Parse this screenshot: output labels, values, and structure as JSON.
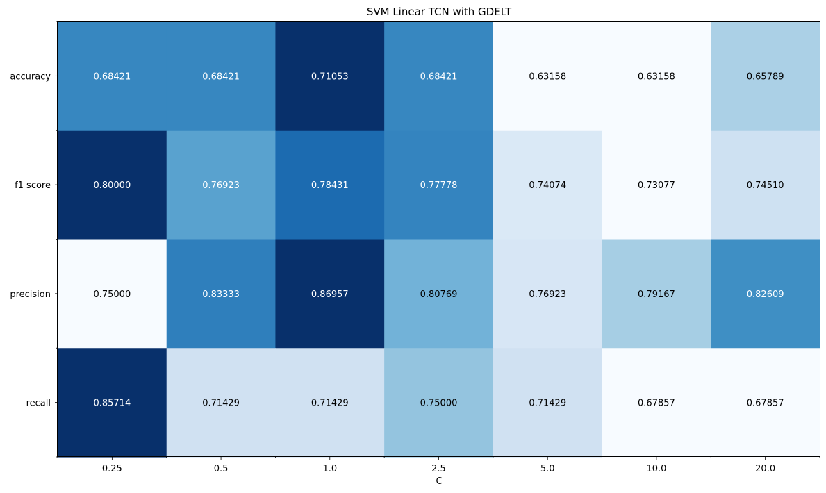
{
  "chart_data": {
    "type": "heatmap",
    "title": "SVM Linear TCN with GDELT",
    "xlabel": "C",
    "ylabel": "",
    "x_categories": [
      "0.25",
      "0.5",
      "1.0",
      "2.5",
      "5.0",
      "10.0",
      "20.0"
    ],
    "y_categories": [
      "accuracy",
      "f1 score",
      "precision",
      "recall"
    ],
    "values": [
      [
        "0.68421",
        "0.68421",
        "0.71053",
        "0.68421",
        "0.63158",
        "0.63158",
        "0.65789"
      ],
      [
        "0.80000",
        "0.76923",
        "0.78431",
        "0.77778",
        "0.74074",
        "0.73077",
        "0.74510"
      ],
      [
        "0.75000",
        "0.83333",
        "0.86957",
        "0.80769",
        "0.76923",
        "0.79167",
        "0.82609"
      ],
      [
        "0.85714",
        "0.71429",
        "0.71429",
        "0.75000",
        "0.71429",
        "0.67857",
        "0.67857"
      ]
    ],
    "colormap": "Blues",
    "color_scale": "per-row",
    "legend": "none",
    "grid": false
  }
}
